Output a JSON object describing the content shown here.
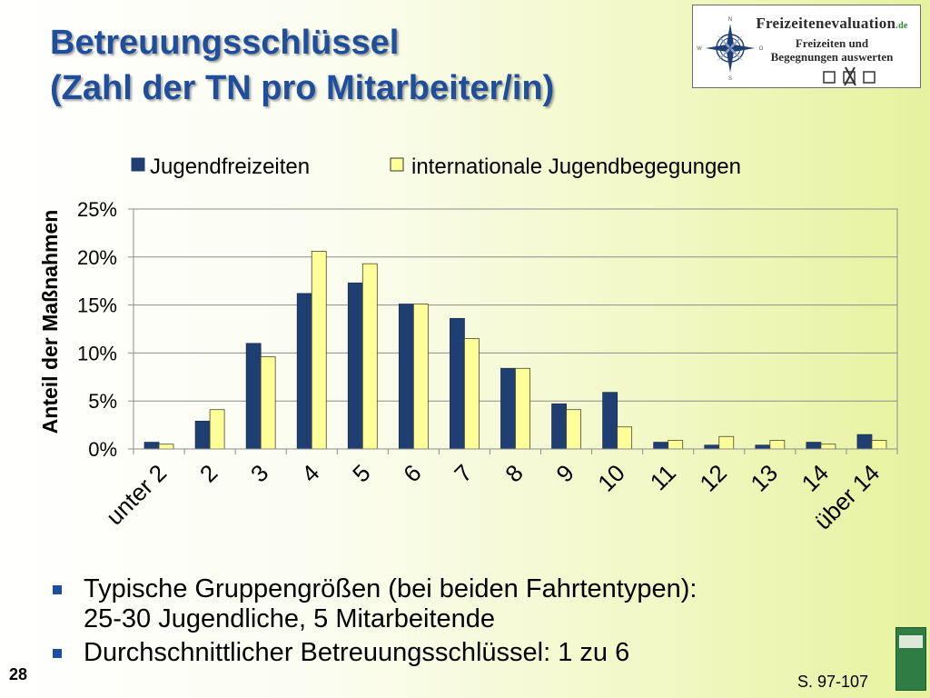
{
  "slide": {
    "title_line1": "Betreuungsschlüssel",
    "title_line2": "(Zahl der TN pro Mitarbeiter/in)",
    "page_number": "28",
    "source_ref": "S. 97-107"
  },
  "logo": {
    "brand": "Freizeitenevaluation",
    "domain": ".de",
    "line1": "Freizeiten und",
    "line2": "Begegnungen auswerten",
    "compass_letters": [
      "N",
      "O",
      "S",
      "W"
    ]
  },
  "bullets": [
    {
      "line1": "Typische Gruppengrößen (bei beiden Fahrtentypen):",
      "line2": "25-30 Jugendliche, 5 Mitarbeitende"
    },
    {
      "line1": "Durchschnittlicher Betreuungsschlüssel: 1 zu 6"
    }
  ],
  "chart_data": {
    "type": "bar",
    "title": "",
    "ylabel": "Anteil der Maßnahmen",
    "xlabel": "",
    "categories": [
      "unter 2",
      "2",
      "3",
      "4",
      "5",
      "6",
      "7",
      "8",
      "9",
      "10",
      "11",
      "12",
      "13",
      "14",
      "über 14"
    ],
    "series": [
      {
        "name": "Jugendfreizeiten",
        "color": "#1f3f73",
        "values": [
          0.7,
          2.9,
          11.0,
          16.2,
          17.3,
          15.1,
          13.6,
          8.4,
          4.7,
          5.9,
          0.7,
          0.4,
          0.4,
          0.7,
          1.5
        ]
      },
      {
        "name": "internationale Jugendbegegungen",
        "color": "#ffff99",
        "values": [
          0.5,
          4.1,
          9.6,
          20.6,
          19.3,
          15.1,
          11.5,
          8.4,
          4.1,
          2.3,
          0.9,
          1.3,
          0.9,
          0.5,
          0.9
        ]
      }
    ],
    "ylim": [
      0,
      25
    ],
    "yticks": [
      0,
      5,
      10,
      15,
      20,
      25
    ],
    "ytick_labels": [
      "0%",
      "5%",
      "10%",
      "15%",
      "20%",
      "25%"
    ],
    "grid": true,
    "legend_position": "top"
  }
}
